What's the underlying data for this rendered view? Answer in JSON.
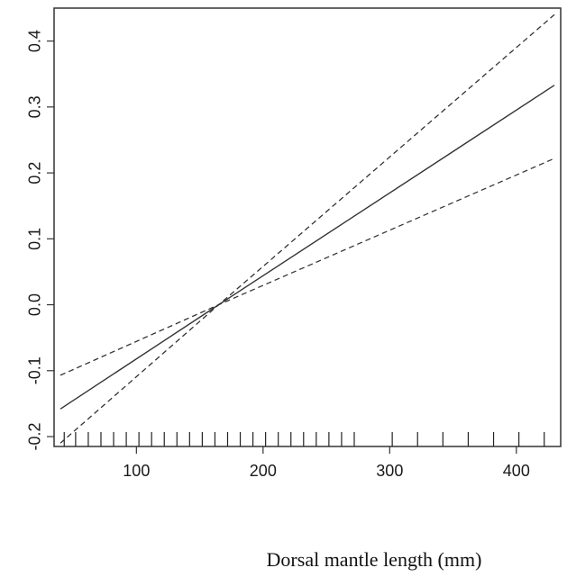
{
  "chart_data": {
    "type": "line",
    "title": "",
    "xlabel": "Dorsal mantle length (mm)",
    "ylabel": "",
    "xlim": [
      35,
      435
    ],
    "ylim": [
      -0.215,
      0.45
    ],
    "x_ticks": [
      100,
      200,
      300,
      400
    ],
    "y_ticks": [
      -0.2,
      -0.1,
      0.0,
      0.1,
      0.2,
      0.3,
      0.4
    ],
    "x_tick_labels": [
      "100",
      "200",
      "300",
      "400"
    ],
    "y_tick_labels": [
      "-0.2",
      "-0.1",
      "0.0",
      "0.1",
      "0.2",
      "0.3",
      "0.4"
    ],
    "grid": false,
    "legend": "none",
    "series": [
      {
        "style": "solid",
        "color": "#333333",
        "x": [
          40,
          165,
          430
        ],
        "y": [
          -0.158,
          0.0,
          0.333
        ]
      },
      {
        "style": "dashed",
        "color": "#333333",
        "x": [
          40,
          165,
          430
        ],
        "y": [
          -0.107,
          0.0,
          0.222
        ]
      },
      {
        "style": "dashed",
        "color": "#333333",
        "x": [
          40,
          165,
          430
        ],
        "y": [
          -0.21,
          0.0,
          0.44
        ]
      }
    ],
    "rug": [
      43,
      52,
      62,
      72,
      82,
      92,
      102,
      112,
      122,
      132,
      142,
      152,
      162,
      172,
      182,
      192,
      202,
      212,
      222,
      232,
      242,
      252,
      262,
      272,
      302,
      322,
      342,
      362,
      382,
      402,
      422
    ]
  }
}
